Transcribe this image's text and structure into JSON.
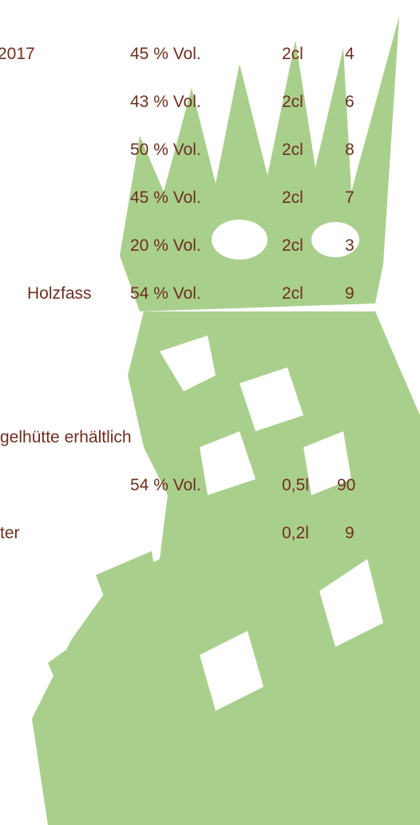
{
  "menu": {
    "rows": [
      {
        "name": "2017",
        "abv": "45 % Vol.",
        "volume": "2cl",
        "price": "4"
      },
      {
        "abv": "43 % Vol.",
        "volume": "2cl",
        "price": "6"
      },
      {
        "abv": "50 % Vol.",
        "volume": "2cl",
        "price": "8"
      },
      {
        "abv": "45 % Vol.",
        "volume": "2cl",
        "price": "7"
      },
      {
        "abv": "20 % Vol.",
        "volume": "2cl",
        "price": "3"
      },
      {
        "name": "Holzfass",
        "abv": "54 % Vol.",
        "volume": "2cl",
        "price": "9"
      },
      {
        "name": "gelhütte erhältlich"
      },
      {
        "abv": "54 % Vol.",
        "volume": "0,5l",
        "price": "90"
      },
      {
        "name": "ter",
        "volume": "0,2l",
        "price": "9"
      }
    ]
  }
}
